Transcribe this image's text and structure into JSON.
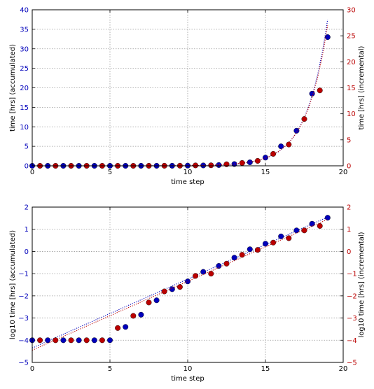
{
  "colors": {
    "accumulated": "#0000bb",
    "incremental": "#bb0000",
    "grid": "#9a9a9a",
    "axis": "#000000"
  },
  "chart_data": [
    {
      "type": "scatter",
      "xlabel": "time step",
      "ylabel_left": "time [hrs] (accumulated)",
      "ylabel_right": "time [hrs] (incremental)",
      "xlim": [
        0,
        20
      ],
      "ylim_left": [
        0,
        40
      ],
      "ylim_right": [
        0,
        30
      ],
      "xticks": [
        0,
        5,
        10,
        15,
        20
      ],
      "yticks_left": [
        0,
        5,
        10,
        15,
        20,
        25,
        30,
        35,
        40
      ],
      "yticks_right": [
        0,
        5,
        10,
        15,
        20,
        25,
        30
      ],
      "grid": true,
      "series": [
        {
          "axis": "left",
          "x": [
            0,
            1,
            2,
            3,
            4,
            5,
            6,
            7,
            8,
            9,
            10,
            11,
            12,
            13,
            14,
            15,
            16,
            17,
            18,
            19
          ],
          "values": [
            0.0001,
            0.0001,
            0.0001,
            0.0001,
            0.0001,
            0.0004,
            0.0012,
            0.003,
            0.0073,
            0.02,
            0.05,
            0.1,
            0.2,
            0.45,
            0.9,
            2.1,
            5.0,
            9.0,
            18.5,
            33.0
          ],
          "fit_x": [
            0,
            19
          ],
          "fit_values": [
            3e-05,
            37.5
          ]
        },
        {
          "axis": "right",
          "x": [
            0.5,
            1.5,
            2.5,
            3.5,
            4.5,
            5.5,
            6.5,
            7.5,
            8.5,
            9.5,
            10.5,
            11.5,
            12.5,
            13.5,
            14.5,
            15.5,
            16.5,
            17.5,
            18.5
          ],
          "values": [
            0.0001,
            0.0001,
            0.0001,
            0.0001,
            0.0001,
            0.0004,
            0.0012,
            0.005,
            0.015,
            0.024,
            0.08,
            0.1,
            0.3,
            0.55,
            0.95,
            2.3,
            4.1,
            9.0,
            14.5
          ],
          "fit_x": [
            0,
            19
          ],
          "fit_values": [
            3e-05,
            27
          ]
        }
      ]
    },
    {
      "type": "scatter",
      "xlabel": "time step",
      "ylabel_left": "log10 time [hrs] (accumulated)",
      "ylabel_right": "log10 time [hrs] (incremental)",
      "xlim": [
        0,
        20
      ],
      "ylim_left": [
        -5,
        2
      ],
      "ylim_right": [
        -5,
        2
      ],
      "xticks": [
        0,
        5,
        10,
        15,
        20
      ],
      "yticks_left": [
        -5,
        -4,
        -3,
        -2,
        -1,
        0,
        1,
        2
      ],
      "yticks_right": [
        -5,
        -4,
        -3,
        -2,
        -1,
        0,
        1,
        2
      ],
      "grid": true,
      "series": [
        {
          "axis": "left",
          "x": [
            0,
            1,
            2,
            3,
            4,
            5,
            6,
            7,
            8,
            9,
            10,
            11,
            12,
            13,
            14,
            15,
            16,
            17,
            18,
            19
          ],
          "values": [
            -4,
            -4,
            -4,
            -4,
            -4,
            -4,
            -3.4,
            -2.85,
            -2.2,
            -1.7,
            -1.35,
            -0.92,
            -0.65,
            -0.28,
            0.1,
            0.35,
            0.68,
            0.95,
            1.25,
            1.52
          ],
          "fit_x": [
            0,
            19
          ],
          "fit_values": [
            -4.35,
            1.55
          ]
        },
        {
          "axis": "right",
          "x": [
            0.5,
            1.5,
            2.5,
            3.5,
            4.5,
            5.5,
            6.5,
            7.5,
            8.5,
            9.5,
            10.5,
            11.5,
            12.5,
            13.5,
            14.5,
            15.5,
            16.5,
            17.5,
            18.5
          ],
          "values": [
            -4,
            -4,
            -4,
            -4,
            -4,
            -3.45,
            -2.9,
            -2.3,
            -1.8,
            -1.6,
            -1.1,
            -1.0,
            -0.55,
            -0.15,
            0.07,
            0.4,
            0.6,
            0.95,
            1.15
          ],
          "fit_x": [
            0,
            19
          ],
          "fit_values": [
            -4.45,
            1.45
          ]
        }
      ]
    }
  ]
}
